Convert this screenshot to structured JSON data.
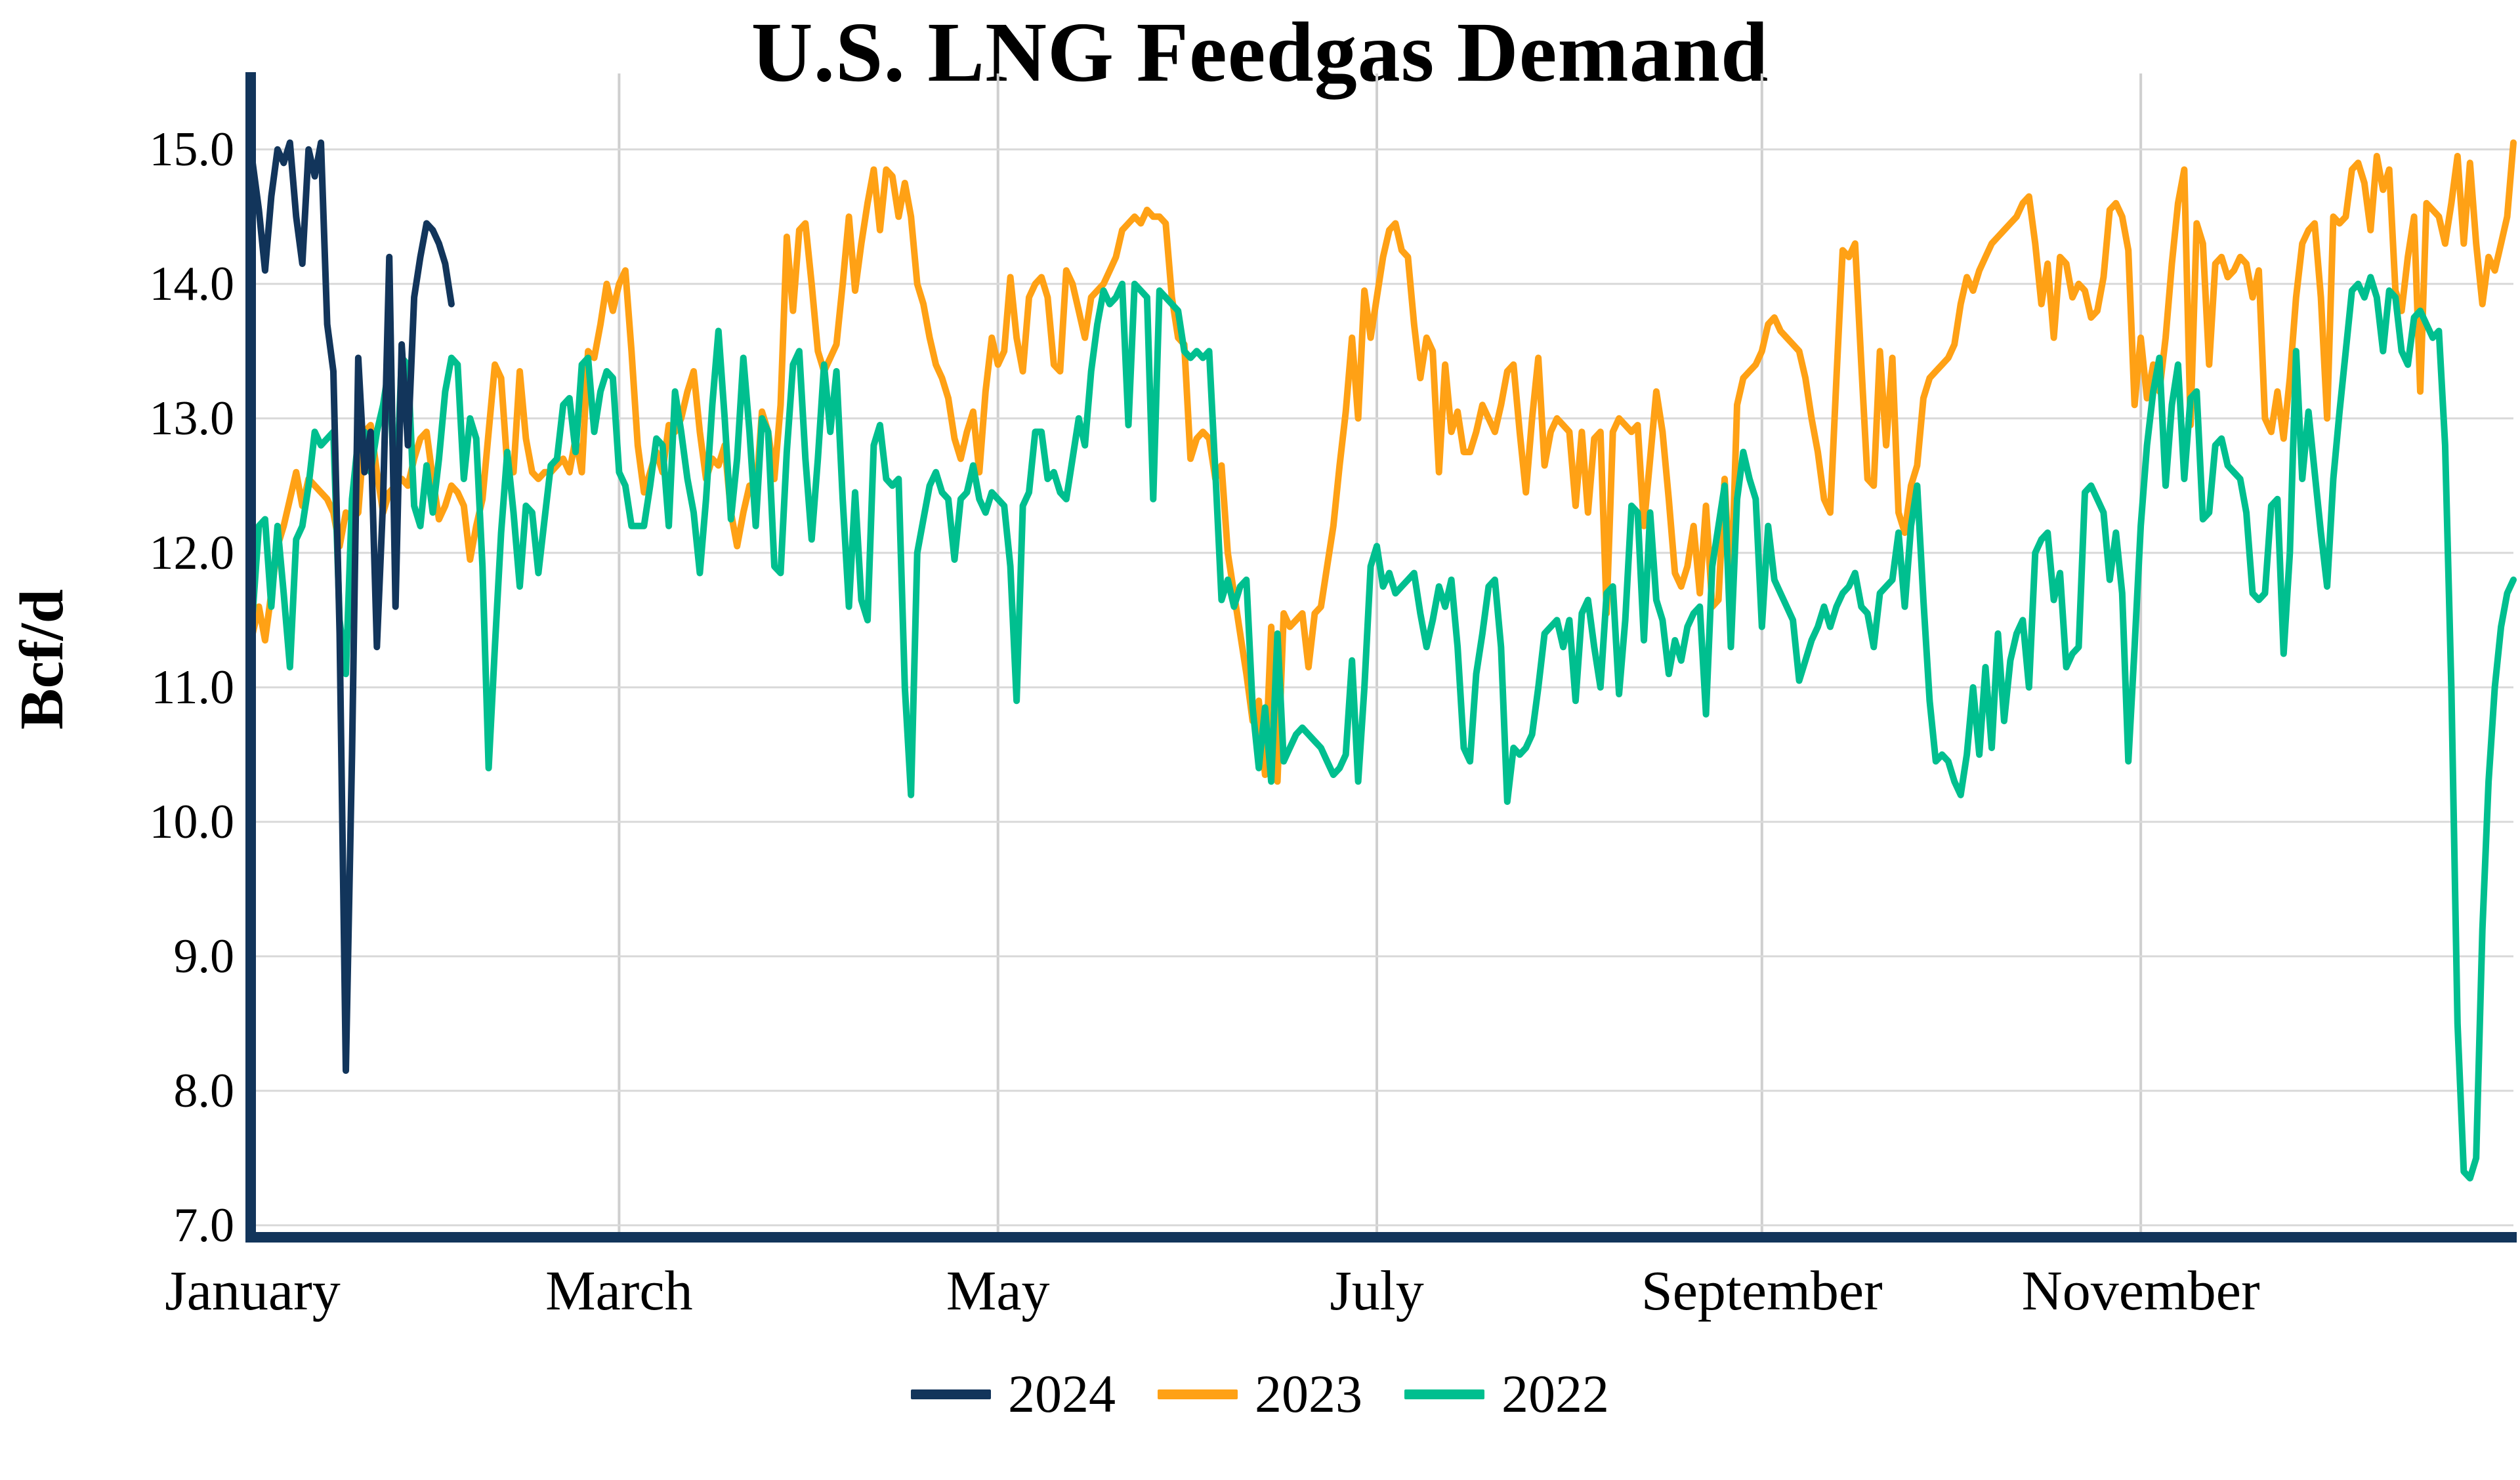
{
  "title": "U.S. LNG Feedgas Demand",
  "colors": {
    "axis": "#12355b",
    "gridline_h": "#d9d9d9",
    "gridline_v": "#cfcfcf",
    "background": "#ffffff",
    "text": "#000000"
  },
  "legend": {
    "items": [
      {
        "label": "2024",
        "color": "#12355b"
      },
      {
        "label": "2023",
        "color": "#ffa115"
      },
      {
        "label": "2022",
        "color": "#00bf8f"
      }
    ]
  },
  "chart_data": {
    "type": "line",
    "title": "U.S. LNG Feedgas Demand",
    "xlabel": "",
    "ylabel": "Bcf/d",
    "x_unit": "day_of_year",
    "x_domain": [
      1,
      365
    ],
    "ylim": [
      6.9,
      15.55
    ],
    "grid": true,
    "legend_position": "bottom-center",
    "y_ticks": [
      {
        "label": "15.0",
        "value": 15.0
      },
      {
        "label": "14.0",
        "value": 14.0
      },
      {
        "label": "13.0",
        "value": 13.0
      },
      {
        "label": "12.0",
        "value": 12.0
      },
      {
        "label": "11.0",
        "value": 11.0
      },
      {
        "label": "10.0",
        "value": 10.0
      },
      {
        "label": "9.0",
        "value": 9.0
      },
      {
        "label": "8.0",
        "value": 8.0
      },
      {
        "label": "7.0",
        "value": 7.0
      }
    ],
    "x_ticks": [
      {
        "label": "January",
        "day": 1
      },
      {
        "label": "March",
        "day": 60
      },
      {
        "label": "May",
        "day": 121
      },
      {
        "label": "July",
        "day": 182
      },
      {
        "label": "September",
        "day": 244
      },
      {
        "label": "November",
        "day": 305
      }
    ],
    "series": [
      {
        "name": "2022",
        "color": "#00bf8f",
        "start_day": 1,
        "values": [
          11.55,
          12.2,
          12.25,
          11.6,
          12.2,
          11.7,
          11.15,
          12.1,
          12.2,
          12.5,
          12.9,
          12.8,
          12.85,
          12.9,
          11.5,
          11.1,
          12.4,
          12.85,
          12.9,
          12.6,
          12.9,
          13.1,
          13.4,
          12.3,
          13.45,
          13.4,
          12.35,
          12.2,
          12.65,
          12.3,
          12.7,
          13.2,
          13.45,
          13.4,
          12.55,
          13.0,
          12.85,
          11.9,
          10.4,
          11.3,
          12.15,
          12.75,
          12.3,
          11.75,
          12.35,
          12.3,
          11.85,
          12.25,
          12.65,
          12.7,
          13.1,
          13.15,
          12.75,
          13.4,
          13.45,
          12.9,
          13.2,
          13.35,
          13.3,
          12.6,
          12.5,
          12.2,
          12.2,
          12.2,
          12.5,
          12.85,
          12.8,
          12.2,
          13.2,
          12.9,
          12.55,
          12.3,
          11.85,
          12.4,
          13.1,
          13.65,
          13.0,
          12.25,
          12.7,
          13.45,
          12.9,
          12.2,
          13.0,
          12.9,
          11.9,
          11.85,
          12.75,
          13.4,
          13.5,
          12.7,
          12.1,
          12.7,
          13.4,
          12.9,
          13.35,
          12.4,
          11.6,
          12.45,
          11.65,
          11.5,
          12.8,
          12.95,
          12.55,
          12.5,
          12.55,
          11.0,
          10.2,
          12.0,
          12.25,
          12.5,
          12.6,
          12.45,
          12.4,
          11.95,
          12.4,
          12.45,
          12.65,
          12.4,
          12.3,
          12.45,
          12.4,
          12.35,
          11.9,
          10.9,
          12.35,
          12.45,
          12.9,
          12.9,
          12.55,
          12.6,
          12.45,
          12.4,
          12.7,
          13.0,
          12.8,
          13.35,
          13.7,
          13.95,
          13.85,
          13.9,
          14.0,
          12.95,
          14.0,
          13.95,
          13.9,
          12.4,
          13.95,
          13.9,
          13.85,
          13.8,
          13.5,
          13.45,
          13.5,
          13.45,
          13.5,
          12.6,
          11.65,
          11.8,
          11.6,
          11.75,
          11.8,
          10.85,
          10.4,
          10.85,
          10.3,
          11.4,
          10.45,
          10.55,
          10.65,
          10.7,
          10.65,
          10.6,
          10.55,
          10.45,
          10.35,
          10.4,
          10.5,
          11.2,
          10.3,
          11.0,
          11.9,
          12.05,
          11.75,
          11.85,
          11.7,
          11.75,
          11.8,
          11.85,
          11.55,
          11.3,
          11.5,
          11.75,
          11.6,
          11.8,
          11.3,
          10.55,
          10.45,
          11.1,
          11.4,
          11.75,
          11.8,
          11.3,
          10.15,
          10.55,
          10.5,
          10.55,
          10.65,
          11.0,
          11.4,
          11.45,
          11.5,
          11.3,
          11.5,
          10.9,
          11.55,
          11.65,
          11.3,
          11.0,
          11.7,
          11.75,
          10.95,
          11.5,
          12.35,
          12.3,
          11.35,
          12.3,
          11.65,
          11.5,
          11.1,
          11.35,
          11.2,
          11.45,
          11.55,
          11.6,
          10.8,
          11.9,
          12.2,
          12.5,
          11.3,
          12.4,
          12.75,
          12.55,
          12.4,
          11.45,
          12.2,
          11.8,
          11.7,
          11.6,
          11.5,
          11.05,
          11.2,
          11.35,
          11.45,
          11.6,
          11.45,
          11.6,
          11.7,
          11.75,
          11.85,
          11.6,
          11.55,
          11.3,
          11.7,
          11.75,
          11.8,
          12.15,
          11.6,
          12.2,
          12.5,
          11.65,
          10.9,
          10.45,
          10.5,
          10.45,
          10.3,
          10.2,
          10.5,
          11.0,
          10.5,
          11.15,
          10.55,
          11.4,
          10.75,
          11.2,
          11.4,
          11.5,
          11.0,
          12.0,
          12.1,
          12.15,
          11.65,
          11.85,
          11.15,
          11.25,
          11.3,
          12.45,
          12.5,
          12.4,
          12.3,
          11.8,
          12.15,
          11.7,
          10.45,
          11.3,
          12.2,
          12.8,
          13.2,
          13.45,
          12.5,
          13.1,
          13.4,
          12.55,
          13.15,
          13.2,
          12.25,
          12.3,
          12.8,
          12.85,
          12.65,
          12.6,
          12.55,
          12.3,
          11.7,
          11.65,
          11.7,
          12.35,
          12.4,
          11.25,
          12.0,
          13.5,
          12.55,
          13.05,
          12.6,
          12.15,
          11.75,
          12.55,
          13.05,
          13.5,
          13.95,
          14.0,
          13.9,
          14.05,
          13.9,
          13.5,
          13.95,
          13.9,
          13.5,
          13.4,
          13.75,
          13.8,
          13.7,
          13.6,
          13.65,
          12.8,
          11.0,
          8.5,
          7.4,
          7.35,
          7.5,
          9.2,
          10.3,
          11.0,
          11.45,
          11.7,
          11.8
        ]
      },
      {
        "name": "2023",
        "color": "#ffa115",
        "start_day": 1,
        "values": [
          11.4,
          11.6,
          11.35,
          11.7,
          12.05,
          12.2,
          12.4,
          12.6,
          12.35,
          12.55,
          12.5,
          12.45,
          12.4,
          12.3,
          12.05,
          12.3,
          12.25,
          12.3,
          12.9,
          12.95,
          12.6,
          12.3,
          12.45,
          12.5,
          12.55,
          12.5,
          12.7,
          12.85,
          12.9,
          12.55,
          12.25,
          12.35,
          12.5,
          12.45,
          12.35,
          11.95,
          12.2,
          12.4,
          12.9,
          13.4,
          13.3,
          12.65,
          12.6,
          13.35,
          12.85,
          12.6,
          12.55,
          12.6,
          12.6,
          12.65,
          12.7,
          12.6,
          12.85,
          12.6,
          13.5,
          13.45,
          13.7,
          14.0,
          13.8,
          14.0,
          14.1,
          13.5,
          12.8,
          12.45,
          12.6,
          12.75,
          12.6,
          12.95,
          12.9,
          13.0,
          13.2,
          13.35,
          12.9,
          12.55,
          12.7,
          12.65,
          12.8,
          12.3,
          12.05,
          12.3,
          12.5,
          12.4,
          13.05,
          12.9,
          12.55,
          13.1,
          14.35,
          13.8,
          14.4,
          14.45,
          14.0,
          13.5,
          13.35,
          13.45,
          13.55,
          14.0,
          14.5,
          13.95,
          14.3,
          14.6,
          14.85,
          14.4,
          14.85,
          14.8,
          14.5,
          14.75,
          14.5,
          14.0,
          13.85,
          13.6,
          13.4,
          13.3,
          13.15,
          12.85,
          12.7,
          12.9,
          13.05,
          12.6,
          13.2,
          13.6,
          13.4,
          13.5,
          14.05,
          13.6,
          13.35,
          13.9,
          14.0,
          14.05,
          13.9,
          13.4,
          13.35,
          14.1,
          14.0,
          13.8,
          13.6,
          13.9,
          13.95,
          14.0,
          14.1,
          14.2,
          14.4,
          14.45,
          14.5,
          14.45,
          14.55,
          14.5,
          14.5,
          14.45,
          13.9,
          13.6,
          13.55,
          12.7,
          12.85,
          12.9,
          12.85,
          12.55,
          12.65,
          12.0,
          11.7,
          11.4,
          11.1,
          10.75,
          10.9,
          10.35,
          11.45,
          10.3,
          11.55,
          11.45,
          11.5,
          11.55,
          11.15,
          11.55,
          11.6,
          11.9,
          12.2,
          12.65,
          13.05,
          13.6,
          13.0,
          13.95,
          13.6,
          13.9,
          14.2,
          14.4,
          14.45,
          14.25,
          14.2,
          13.7,
          13.3,
          13.6,
          13.5,
          12.6,
          13.4,
          12.9,
          13.05,
          12.75,
          12.75,
          12.9,
          13.1,
          13.0,
          12.9,
          13.1,
          13.35,
          13.4,
          12.9,
          12.45,
          13.0,
          13.45,
          12.65,
          12.9,
          13.0,
          12.95,
          12.9,
          12.35,
          12.9,
          12.3,
          12.85,
          12.9,
          11.55,
          12.9,
          13.0,
          12.95,
          12.9,
          12.95,
          12.2,
          12.7,
          13.2,
          12.9,
          12.4,
          11.85,
          11.75,
          11.9,
          12.2,
          11.7,
          12.35,
          11.6,
          11.65,
          12.55,
          11.65,
          13.1,
          13.3,
          13.35,
          13.4,
          13.5,
          13.7,
          13.75,
          13.65,
          13.6,
          13.55,
          13.5,
          13.3,
          13.0,
          12.75,
          12.4,
          12.3,
          13.3,
          14.25,
          14.2,
          14.3,
          13.4,
          12.55,
          12.5,
          13.5,
          12.8,
          13.45,
          12.3,
          12.15,
          12.5,
          12.65,
          13.15,
          13.3,
          13.35,
          13.4,
          13.45,
          13.55,
          13.85,
          14.05,
          13.95,
          14.1,
          14.2,
          14.3,
          14.35,
          14.4,
          14.45,
          14.5,
          14.6,
          14.65,
          14.3,
          13.85,
          14.15,
          13.6,
          14.2,
          14.15,
          13.9,
          14.0,
          13.95,
          13.75,
          13.8,
          14.05,
          14.55,
          14.6,
          14.5,
          14.25,
          13.1,
          13.6,
          13.15,
          13.4,
          13.2,
          13.6,
          14.15,
          14.6,
          14.85,
          12.95,
          14.45,
          14.3,
          13.4,
          14.15,
          14.2,
          14.05,
          14.1,
          14.2,
          14.15,
          13.9,
          14.1,
          13.0,
          12.9,
          13.2,
          12.85,
          13.3,
          13.9,
          14.3,
          14.4,
          14.45,
          13.9,
          13.0,
          14.5,
          14.45,
          14.5,
          14.85,
          14.9,
          14.75,
          14.4,
          14.95,
          14.7,
          14.85,
          13.95,
          13.8,
          14.2,
          14.5,
          13.2,
          14.6,
          14.55,
          14.5,
          14.3,
          14.6,
          14.95,
          14.3,
          14.9,
          14.3,
          13.85,
          14.2,
          14.1,
          14.3,
          14.5,
          15.05
        ]
      },
      {
        "name": "2024",
        "color": "#12355b",
        "start_day": 1,
        "values": [
          14.9,
          14.55,
          14.1,
          14.65,
          15.0,
          14.9,
          15.05,
          14.5,
          14.15,
          15.0,
          14.8,
          15.05,
          13.7,
          13.35,
          11.4,
          8.15,
          10.5,
          13.45,
          12.6,
          12.9,
          11.3,
          12.4,
          14.2,
          11.6,
          13.55,
          12.8,
          13.9,
          14.2,
          14.45,
          14.4,
          14.3,
          14.15,
          13.85
        ]
      }
    ]
  }
}
